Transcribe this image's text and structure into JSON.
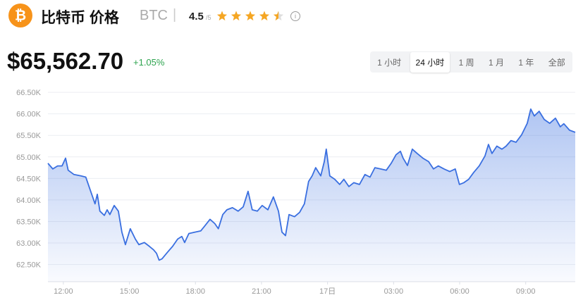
{
  "header": {
    "logo_symbol": "₿",
    "title": "比特币 价格",
    "symbol": "BTC",
    "separator": "|",
    "rating": 4.5,
    "rating_scale": "/5",
    "info_icon": "i"
  },
  "price": {
    "value": "$65,562.70",
    "change": "+1.05%"
  },
  "tabs": {
    "items": [
      "1 小时",
      "24 小时",
      "1 周",
      "1 月",
      "1 年",
      "全部"
    ],
    "selected": 1
  },
  "chart_data": {
    "type": "area",
    "color": "#3a6fe0",
    "grid": true,
    "x": [
      11.3,
      11.52,
      11.74,
      11.94,
      12.1,
      12.22,
      12.48,
      12.8,
      13.02,
      13.22,
      13.44,
      13.54,
      13.66,
      13.86,
      13.99,
      14.11,
      14.31,
      14.5,
      14.66,
      14.82,
      15.04,
      15.27,
      15.43,
      15.68,
      15.91,
      16.1,
      16.23,
      16.35,
      16.48,
      16.74,
      16.96,
      17.19,
      17.38,
      17.51,
      17.7,
      17.96,
      18.24,
      18.4,
      18.66,
      18.88,
      19.04,
      19.24,
      19.43,
      19.68,
      19.94,
      20.17,
      20.39,
      20.58,
      20.81,
      21.03,
      21.29,
      21.54,
      21.77,
      21.93,
      22.09,
      22.25,
      22.5,
      22.73,
      22.95,
      23.14,
      23.3,
      23.46,
      23.69,
      23.85,
      23.94,
      24.1,
      24.33,
      24.55,
      24.74,
      24.97,
      25.19,
      25.45,
      25.7,
      25.93,
      26.15,
      26.41,
      26.67,
      26.89,
      27.11,
      27.31,
      27.43,
      27.63,
      27.85,
      28.07,
      28.33,
      28.59,
      28.81,
      29.03,
      29.29,
      29.55,
      29.8,
      29.99,
      30.19,
      30.41,
      30.64,
      30.89,
      31.15,
      31.31,
      31.47,
      31.69,
      31.92,
      32.11,
      32.33,
      32.56,
      32.81,
      33.07,
      33.23,
      33.39,
      33.61,
      33.84,
      34.09,
      34.35,
      34.57,
      34.73,
      34.99,
      35.25
    ],
    "values": [
      64850,
      64720,
      64790,
      64790,
      64970,
      64690,
      64590,
      64560,
      64530,
      64230,
      63910,
      64130,
      63740,
      63640,
      63770,
      63660,
      63870,
      63740,
      63250,
      62960,
      63330,
      63090,
      62960,
      63010,
      62920,
      62840,
      62760,
      62600,
      62630,
      62790,
      62920,
      63090,
      63150,
      63010,
      63220,
      63250,
      63280,
      63380,
      63550,
      63450,
      63330,
      63660,
      63770,
      63820,
      63740,
      63840,
      64200,
      63770,
      63740,
      63870,
      63770,
      64070,
      63740,
      63250,
      63170,
      63660,
      63610,
      63710,
      63910,
      64430,
      64560,
      64750,
      64560,
      64890,
      65180,
      64560,
      64480,
      64360,
      64480,
      64310,
      64400,
      64360,
      64590,
      64530,
      64750,
      64720,
      64690,
      64850,
      65050,
      65130,
      64970,
      64800,
      65180,
      65080,
      64970,
      64890,
      64720,
      64790,
      64720,
      64660,
      64720,
      64360,
      64400,
      64480,
      64640,
      64790,
      65020,
      65290,
      65080,
      65250,
      65180,
      65250,
      65380,
      65340,
      65510,
      65780,
      66110,
      65950,
      66060,
      65870,
      65780,
      65900,
      65700,
      65770,
      65620,
      65570
    ],
    "xlim": [
      11.3,
      35.25
    ],
    "xticks": [
      {
        "value": 12,
        "label": "12:00"
      },
      {
        "value": 15,
        "label": "15:00"
      },
      {
        "value": 18,
        "label": "18:00"
      },
      {
        "value": 21,
        "label": "21:00"
      },
      {
        "value": 24,
        "label": "17日"
      },
      {
        "value": 27,
        "label": "03:00"
      },
      {
        "value": 30,
        "label": "06:00"
      },
      {
        "value": 33,
        "label": "09:00"
      }
    ],
    "ylim": [
      62100,
      66600
    ],
    "yticks": [
      {
        "value": 62500,
        "label": "62.50K"
      },
      {
        "value": 63000,
        "label": "63.00K"
      },
      {
        "value": 63500,
        "label": "63.50K"
      },
      {
        "value": 64000,
        "label": "64.00K"
      },
      {
        "value": 64500,
        "label": "64.50K"
      },
      {
        "value": 65000,
        "label": "65.00K"
      },
      {
        "value": 65500,
        "label": "65.50K"
      },
      {
        "value": 66000,
        "label": "66.00K"
      },
      {
        "value": 66500,
        "label": "66.50K"
      }
    ]
  }
}
